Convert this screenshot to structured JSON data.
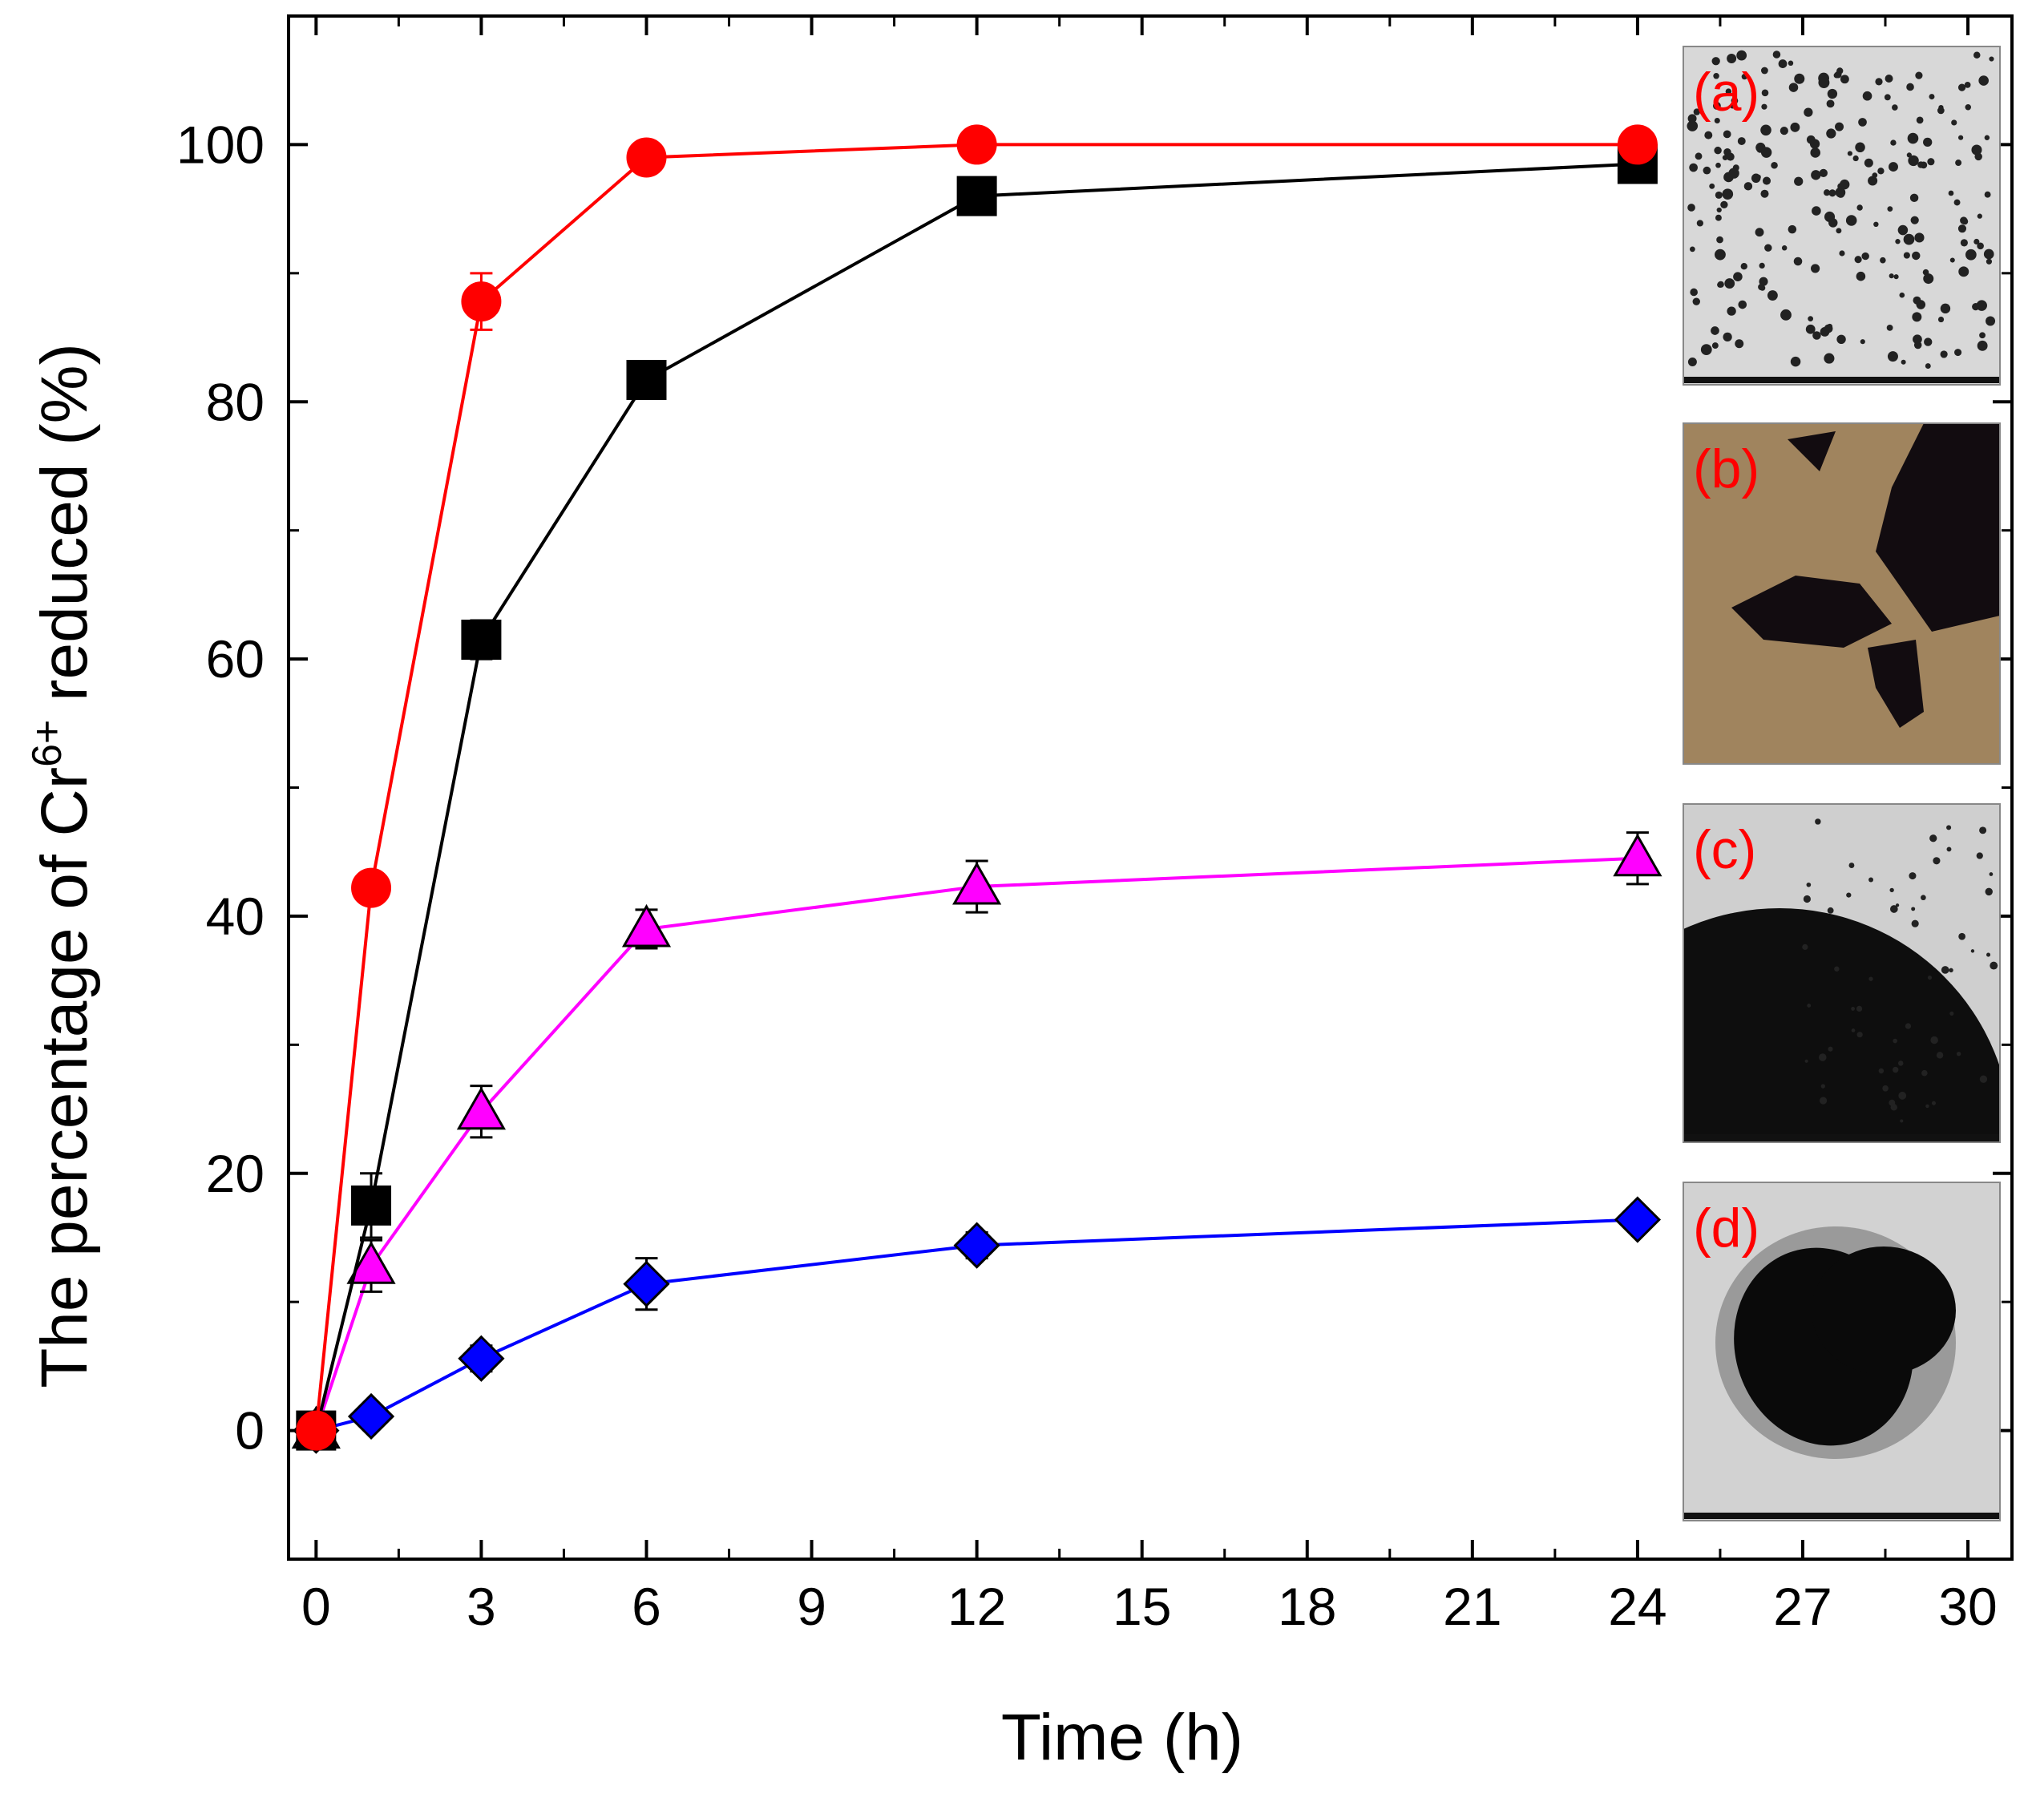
{
  "chart_data": {
    "type": "line",
    "xlabel": "Time (h)",
    "ylabel": {
      "prefix": "The percentage of Cr",
      "superscript": "6+",
      "suffix": " reduced (%)"
    },
    "xlim": [
      -0.5,
      30.8
    ],
    "ylim": [
      -10,
      110
    ],
    "x_ticks": [
      "0",
      "3",
      "6",
      "9",
      "12",
      "15",
      "18",
      "21",
      "24",
      "27",
      "30"
    ],
    "x_tick_values": [
      0,
      3,
      6,
      9,
      12,
      15,
      18,
      21,
      24,
      27,
      30
    ],
    "y_ticks": [
      "0",
      "20",
      "40",
      "60",
      "80",
      "100"
    ],
    "y_tick_values": [
      0,
      20,
      40,
      60,
      80,
      100
    ],
    "grid": false,
    "x": [
      0,
      1,
      3,
      6,
      12,
      24
    ],
    "series": [
      {
        "marker": "circle",
        "color": "#ff0000",
        "values": [
          0,
          42.2,
          87.8,
          99.0,
          100.0,
          100.0
        ],
        "errors": [
          0.5,
          0.8,
          2.2,
          0.6,
          0.3,
          0.3
        ]
      },
      {
        "marker": "square",
        "color": "#000000",
        "values": [
          0,
          17.5,
          61.5,
          81.7,
          96.0,
          98.5
        ],
        "errors": [
          0.5,
          2.5,
          1.5,
          1.0,
          0.5,
          0.5
        ]
      },
      {
        "marker": "triangle",
        "color": "#ff00ff",
        "values": [
          0,
          12.8,
          24.8,
          39.0,
          42.3,
          44.5
        ],
        "errors": [
          0.5,
          2.0,
          2.0,
          1.5,
          2.0,
          2.0
        ]
      },
      {
        "marker": "diamond",
        "color": "#0000ff",
        "values": [
          0,
          1.1,
          5.6,
          11.4,
          14.4,
          16.4
        ],
        "errors": [
          0.5,
          0.5,
          1.0,
          2.0,
          1.0,
          0.5
        ]
      }
    ],
    "insets": [
      {
        "label": "(a)",
        "kind": "dots"
      },
      {
        "label": "(b)",
        "kind": "brown"
      },
      {
        "label": "(c)",
        "kind": "aggregate"
      },
      {
        "label": "(d)",
        "kind": "blob"
      }
    ]
  }
}
